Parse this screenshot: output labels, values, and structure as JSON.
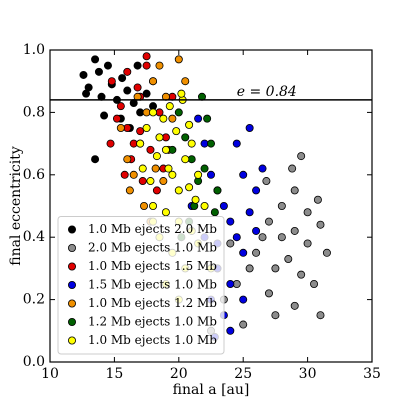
{
  "chart_data": {
    "type": "scatter",
    "xlabel": "final a [au]",
    "ylabel": "final eccentricity",
    "xlim": [
      10,
      35
    ],
    "ylim": [
      0,
      1
    ],
    "xticks": [
      10,
      15,
      20,
      25,
      30,
      35
    ],
    "yticks": [
      {
        "value": 0,
        "label": "0.0"
      },
      0.2,
      0.4,
      0.6,
      0.8,
      {
        "value": 1,
        "label": "1.0"
      }
    ],
    "hline": 0.84,
    "annotation": "e = 0.84",
    "legend": "lower left",
    "series": [
      {
        "name": "1.0 Mb ejects 2.0 Mb",
        "color": "#000000",
        "x": [
          12.6,
          13,
          13.5,
          13.8,
          14,
          14.5,
          14.8,
          15.2,
          15.6,
          16,
          16.5,
          17,
          17.5,
          13.5,
          14.2,
          16.8,
          18,
          15.5,
          12.8,
          16.2
        ],
        "y": [
          0.92,
          0.88,
          0.97,
          0.93,
          0.85,
          0.95,
          0.89,
          0.84,
          0.91,
          0.87,
          0.83,
          0.8,
          0.86,
          0.65,
          0.79,
          0.95,
          0.82,
          0.78,
          0.86,
          0.75
        ]
      },
      {
        "name": "2.0 Mb ejects 1.0 Mb",
        "color": "#8c8c8c",
        "x": [
          27,
          28,
          29,
          30,
          31,
          27.5,
          28.5,
          29.5,
          30.5,
          26,
          26.5,
          25.5,
          24.5,
          24,
          23.5,
          28,
          29,
          27,
          30,
          31.5,
          29,
          27.5,
          28.8,
          30.8,
          26.8,
          25,
          23,
          22.5,
          29.5,
          31
        ],
        "y": [
          0.45,
          0.4,
          0.42,
          0.38,
          0.44,
          0.3,
          0.33,
          0.28,
          0.25,
          0.35,
          0.4,
          0.3,
          0.25,
          0.38,
          0.2,
          0.5,
          0.55,
          0.22,
          0.48,
          0.35,
          0.18,
          0.15,
          0.62,
          0.52,
          0.58,
          0.12,
          0.3,
          0.1,
          0.66,
          0.15
        ]
      },
      {
        "name": "1.0 Mb ejects 1.5 Mb",
        "color": "#e00000",
        "x": [
          14.8,
          15.5,
          16,
          16.5,
          17,
          17.5,
          18,
          18.5,
          19,
          15.8,
          16.3,
          17.2,
          17.8,
          18.3,
          15.2,
          16.8,
          17.5,
          19.5,
          16,
          14.7,
          18.8,
          17
        ],
        "y": [
          0.9,
          0.82,
          0.75,
          0.7,
          0.85,
          0.95,
          0.9,
          0.8,
          0.72,
          0.6,
          0.65,
          0.58,
          0.68,
          0.55,
          0.78,
          0.88,
          0.98,
          0.85,
          0.93,
          0.7,
          0.62,
          0.74
        ]
      },
      {
        "name": "1.5 Mb ejects 1.0 Mb",
        "color": "#0000e0",
        "x": [
          22,
          22.5,
          23,
          23.5,
          24,
          24.5,
          25,
          25.5,
          26,
          26.5,
          23,
          24,
          25,
          22,
          21.5,
          24.5,
          25.5,
          23.5,
          22.5,
          24,
          26,
          21,
          25,
          23,
          22.8
        ],
        "y": [
          0.7,
          0.6,
          0.55,
          0.5,
          0.45,
          0.4,
          0.35,
          0.48,
          0.55,
          0.62,
          0.3,
          0.25,
          0.2,
          0.4,
          0.78,
          0.7,
          0.75,
          0.15,
          0.2,
          0.1,
          0.42,
          0.5,
          0.6,
          0.38,
          0.08
        ]
      },
      {
        "name": "1.0 Mb ejects 1.2 Mb",
        "color": "#f09000",
        "x": [
          15.5,
          16,
          16.5,
          17,
          17.5,
          18,
          18.5,
          19,
          19.5,
          20,
          20.5,
          16.2,
          17.3,
          18.2,
          19.2,
          17.8,
          16.8,
          18.8
        ],
        "y": [
          0.75,
          0.65,
          0.6,
          0.7,
          0.8,
          0.9,
          0.95,
          0.85,
          0.78,
          0.97,
          0.9,
          0.55,
          0.5,
          0.62,
          0.68,
          0.45,
          0.85,
          0.58
        ]
      },
      {
        "name": "1.2 Mb ejects 1.0 Mb",
        "color": "#006000",
        "x": [
          20,
          20.5,
          21,
          21.5,
          22,
          22.5,
          23,
          21.2,
          20.8,
          22.2,
          21.8,
          19.5,
          20.2,
          22.8
        ],
        "y": [
          0.8,
          0.72,
          0.65,
          0.58,
          0.62,
          0.7,
          0.55,
          0.5,
          0.45,
          0.78,
          0.85,
          0.68,
          0.4,
          0.48
        ]
      },
      {
        "name": "1.0 Mb ejects 1.0 Mb",
        "color": "#ffff00",
        "x": [
          17,
          17.5,
          18,
          18.5,
          19,
          19.5,
          20,
          20.5,
          21,
          21.5,
          22,
          17.2,
          17.8,
          18.3,
          18.8,
          19.3,
          19.8,
          20.3,
          20.8,
          21.3,
          18,
          19,
          20,
          21,
          18.5,
          19.5,
          20.5,
          19,
          20,
          18,
          21.5,
          20.2,
          19.2,
          22.5,
          20.8
        ],
        "y": [
          0.7,
          0.75,
          0.8,
          0.72,
          0.68,
          0.6,
          0.55,
          0.65,
          0.7,
          0.6,
          0.5,
          0.62,
          0.58,
          0.66,
          0.78,
          0.82,
          0.74,
          0.84,
          0.76,
          0.52,
          0.5,
          0.48,
          0.45,
          0.42,
          0.4,
          0.35,
          0.3,
          0.25,
          0.2,
          0.45,
          0.38,
          0.86,
          0.62,
          0.3,
          0.56
        ]
      }
    ]
  }
}
